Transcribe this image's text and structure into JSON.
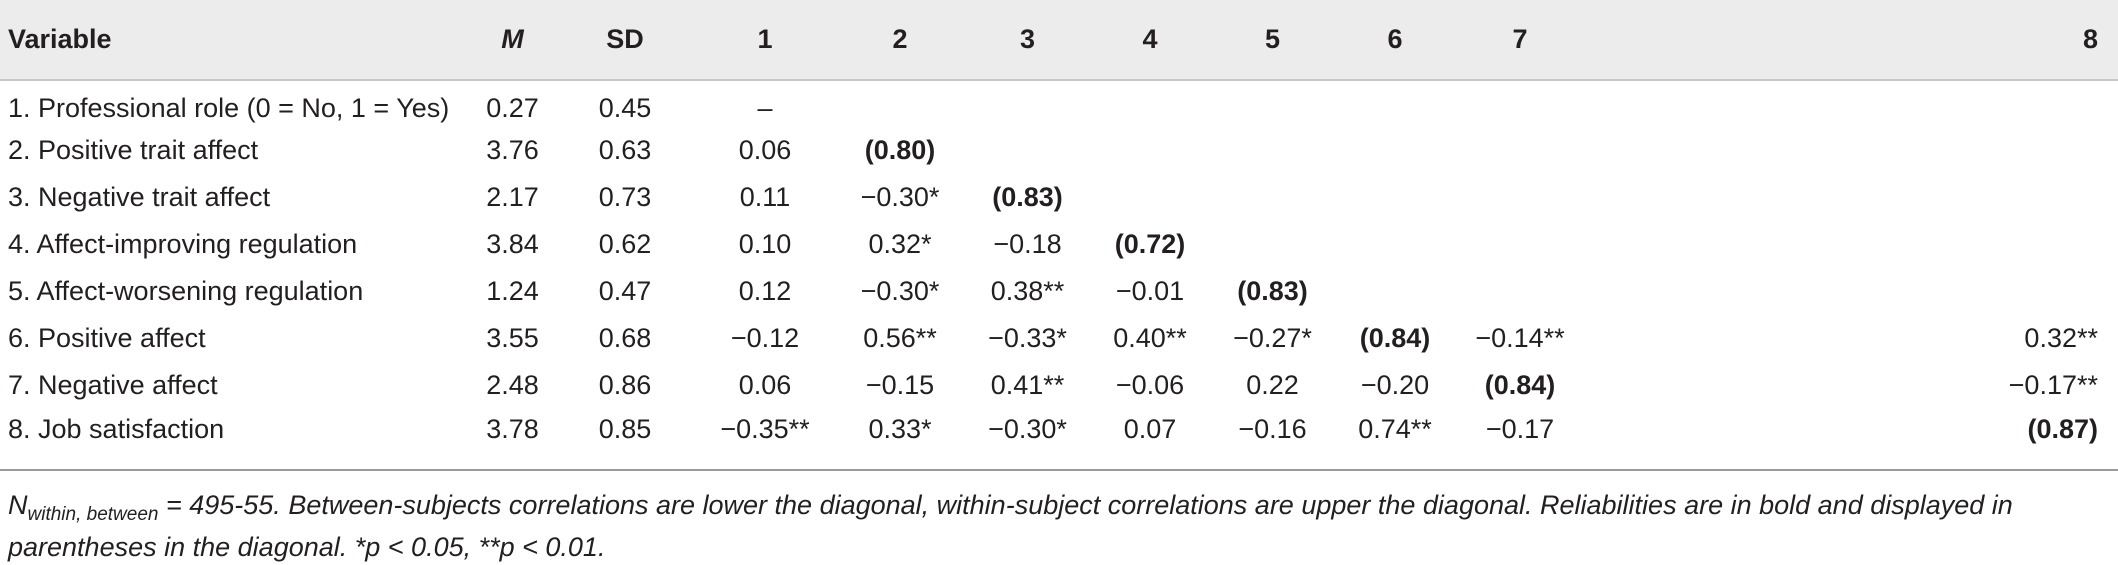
{
  "table": {
    "headers": {
      "variable": "Variable",
      "m": "M",
      "sd": "SD",
      "c1": "1",
      "c2": "2",
      "c3": "3",
      "c4": "4",
      "c5": "5",
      "c6": "6",
      "c7": "7",
      "c8": "8"
    },
    "rows": [
      {
        "label": "1. Professional role (0 = No, 1 = Yes)",
        "m": "0.27",
        "sd": "0.45",
        "c1": "–",
        "c2": "",
        "c3": "",
        "c4": "",
        "c5": "",
        "c6": "",
        "c7": "",
        "c8": ""
      },
      {
        "label": "2. Positive trait affect",
        "m": "3.76",
        "sd": "0.63",
        "c1": "0.06",
        "c2": "(0.80)",
        "c3": "",
        "c4": "",
        "c5": "",
        "c6": "",
        "c7": "",
        "c8": ""
      },
      {
        "label": "3. Negative trait affect",
        "m": "2.17",
        "sd": "0.73",
        "c1": "0.11",
        "c2": "−0.30*",
        "c3": "(0.83)",
        "c4": "",
        "c5": "",
        "c6": "",
        "c7": "",
        "c8": ""
      },
      {
        "label": "4. Affect-improving regulation",
        "m": "3.84",
        "sd": "0.62",
        "c1": "0.10",
        "c2": "0.32*",
        "c3": "−0.18",
        "c4": "(0.72)",
        "c5": "",
        "c6": "",
        "c7": "",
        "c8": ""
      },
      {
        "label": "5. Affect-worsening regulation",
        "m": "1.24",
        "sd": "0.47",
        "c1": "0.12",
        "c2": "−0.30*",
        "c3": "0.38**",
        "c4": "−0.01",
        "c5": "(0.83)",
        "c6": "",
        "c7": "",
        "c8": ""
      },
      {
        "label": "6. Positive affect",
        "m": "3.55",
        "sd": "0.68",
        "c1": "−0.12",
        "c2": "0.56**",
        "c3": "−0.33*",
        "c4": "0.40**",
        "c5": "−0.27*",
        "c6": "(0.84)",
        "c7": "−0.14**",
        "c8": "0.32**"
      },
      {
        "label": "7. Negative affect",
        "m": "2.48",
        "sd": "0.86",
        "c1": "0.06",
        "c2": "−0.15",
        "c3": "0.41**",
        "c4": "−0.06",
        "c5": "0.22",
        "c6": "−0.20",
        "c7": "(0.84)",
        "c8": "−0.17**"
      },
      {
        "label": "8. Job satisfaction",
        "m": "3.78",
        "sd": "0.85",
        "c1": "−0.35**",
        "c2": "0.33*",
        "c3": "−0.30*",
        "c4": "0.07",
        "c5": "−0.16",
        "c6": "0.74**",
        "c7": "−0.17",
        "c8": "(0.87)"
      }
    ]
  },
  "note": {
    "n_symbol": "N",
    "n_subscript": "within, between",
    "text": " = 495-55. Between-subjects correlations are lower the diagonal, within-subject correlations are upper the diagonal. Reliabilities are in bold and displayed in parentheses in the diagonal. *p < 0.05, **p < 0.01."
  }
}
